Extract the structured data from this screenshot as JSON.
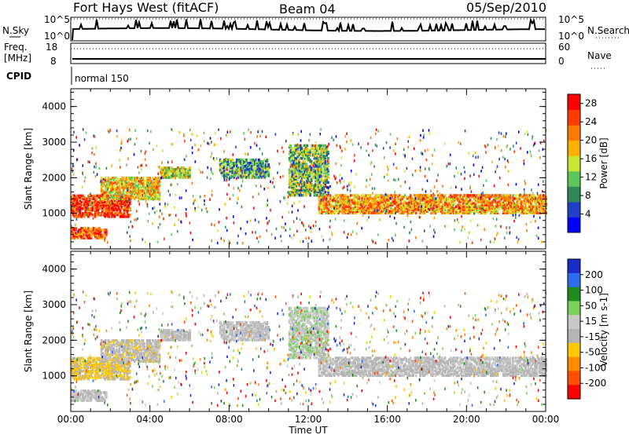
{
  "header": {
    "station": "Fort Hays West (fitACF)",
    "beam": "Beam 04",
    "date": "05/Sep/2010"
  },
  "top_panels": {
    "nsky_label": "N.Sky",
    "nsky_ticks": [
      "10^5",
      "10^0"
    ],
    "nsearch_label": "N.Search",
    "nsearch_ticks": [
      "10^5",
      "10^0"
    ],
    "freq_label": "Freq.",
    "freq_unit": "[MHz]",
    "freq_ticks": [
      "18",
      "8"
    ],
    "nave_label": "Nave",
    "nave_ticks": [
      "60",
      "0"
    ],
    "cpid_label": "CPID",
    "cpid_value": "normal 150"
  },
  "colors": {
    "power_scale": [
      "#0000ff",
      "#2040c8",
      "#2e8b57",
      "#5cc85c",
      "#c8e632",
      "#ffb000",
      "#ff7800",
      "#ff3c00",
      "#ff0000"
    ],
    "velocity_scale": [
      "#1a2cc8",
      "#2e6cf0",
      "#1e8c1e",
      "#7ad25a",
      "#c8c8c8",
      "#b4b4b4",
      "#ffc800",
      "#ff8c00",
      "#ff5000",
      "#ff0000"
    ]
  },
  "chart_data": [
    {
      "type": "heatmap",
      "panel": "power",
      "ylabel": "Slant Range [km]",
      "yticks": [
        "1000",
        "2000",
        "3000",
        "4000"
      ],
      "ylim": [
        0,
        4500
      ],
      "xlabel": "Time UT",
      "xticks": [
        "00:00",
        "04:00",
        "08:00",
        "12:00",
        "16:00",
        "20:00",
        "00:00"
      ],
      "xlim_hours": [
        0,
        24
      ],
      "colorbar_label": "Power [dB]",
      "colorbar_ticks": [
        "4",
        "8",
        "12",
        "16",
        "20",
        "24",
        "28"
      ],
      "colorbar_range": [
        0,
        30
      ],
      "regions": [
        {
          "t": [
            0.0,
            3.0
          ],
          "range_km": [
            900,
            1500
          ],
          "power_db": 26
        },
        {
          "t": [
            0.0,
            1.8
          ],
          "range_km": [
            300,
            600
          ],
          "power_db": 24
        },
        {
          "t": [
            1.5,
            4.5
          ],
          "range_km": [
            1400,
            2000
          ],
          "power_db": 18
        },
        {
          "t": [
            4.5,
            6.0
          ],
          "range_km": [
            2000,
            2300
          ],
          "power_db": 14
        },
        {
          "t": [
            7.5,
            10.0
          ],
          "range_km": [
            2000,
            2500
          ],
          "power_db": 10
        },
        {
          "t": [
            11.0,
            13.0
          ],
          "range_km": [
            1500,
            2900
          ],
          "power_db": 12
        },
        {
          "t": [
            12.5,
            24.0
          ],
          "range_km": [
            1000,
            1500
          ],
          "power_db": 20
        }
      ]
    },
    {
      "type": "heatmap",
      "panel": "velocity",
      "ylabel": "Slant Range [km]",
      "yticks": [
        "1000",
        "2000",
        "3000",
        "4000"
      ],
      "ylim": [
        0,
        4500
      ],
      "xlabel": "Time UT",
      "xticks": [
        "00:00",
        "04:00",
        "08:00",
        "12:00",
        "16:00",
        "20:00",
        "00:00"
      ],
      "xlim_hours": [
        0,
        24
      ],
      "colorbar_label": "Velocity [m s-1]",
      "colorbar_ticks": [
        "200",
        "100",
        "50",
        "15",
        "-15",
        "-50",
        "-100",
        "-200"
      ],
      "colorbar_range": [
        -250,
        250
      ],
      "regions": [
        {
          "t": [
            0.0,
            3.0
          ],
          "range_km": [
            900,
            1500
          ],
          "velocity_ms": -60
        },
        {
          "t": [
            0.0,
            1.8
          ],
          "range_km": [
            300,
            600
          ],
          "velocity_ms": 0
        },
        {
          "t": [
            1.5,
            4.5
          ],
          "range_km": [
            1400,
            2000
          ],
          "velocity_ms": -20
        },
        {
          "t": [
            4.5,
            6.0
          ],
          "range_km": [
            2000,
            2300
          ],
          "velocity_ms": -10
        },
        {
          "t": [
            7.5,
            10.0
          ],
          "range_km": [
            2000,
            2500
          ],
          "velocity_ms": 0
        },
        {
          "t": [
            11.0,
            13.0
          ],
          "range_km": [
            1500,
            2900
          ],
          "velocity_ms": 30
        },
        {
          "t": [
            12.5,
            24.0
          ],
          "range_km": [
            1000,
            1500
          ],
          "velocity_ms": -10
        }
      ]
    }
  ]
}
